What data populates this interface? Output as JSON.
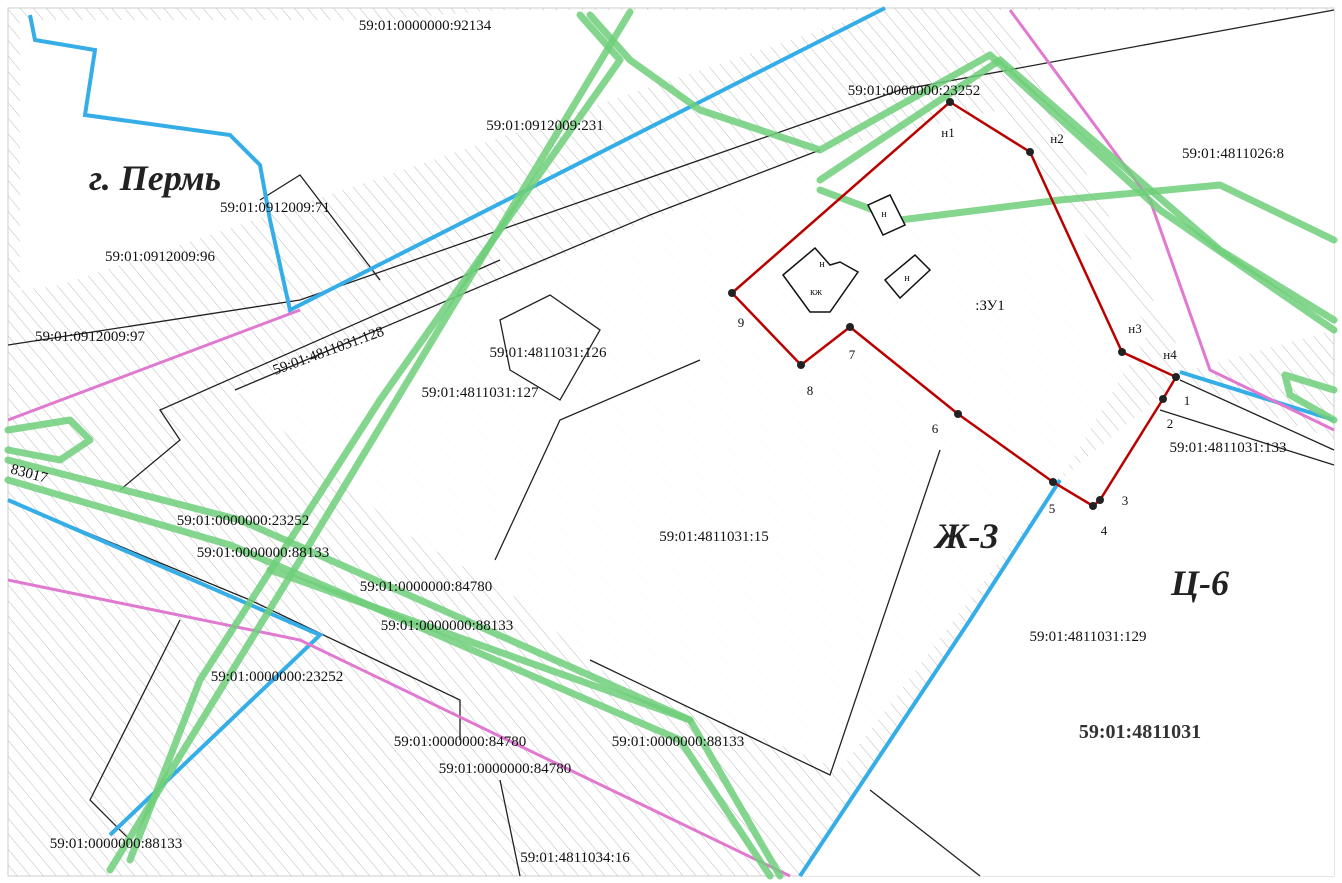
{
  "labels": [
    "59:01:0000000:92134",
    "59:01:0000000:23252",
    "59:01:0912009:231",
    "59:01:4811026:8",
    "г. Пермь",
    "59:01:0912009:71",
    "59:01:0912009:96",
    "59:01:0912009:97",
    "59:01:4811031:128",
    "59:01:4811031:126",
    "59:01:4811031:127",
    ":ЗУ1",
    "59:01:4811031:133",
    "83017",
    "59:01:0000000:23252",
    "59:01:0000000:88133",
    "59:01:4811031:15",
    "Ж-3",
    "Ц-6",
    "59:01:0000000:84780",
    "59:01:0000000:88133",
    "59:01:4811031:129",
    "59:01:0000000:23252",
    "59:01:4811031",
    "59:01:0000000:84780",
    "59:01:0000000:88133",
    "59:01:0000000:84780",
    "59:01:0000000:88133",
    "59:01:4811034:16"
  ],
  "points": [
    "н1",
    "н2",
    "н3",
    "н4",
    "1",
    "2",
    "3",
    "4",
    "5",
    "6",
    "7",
    "8",
    "9"
  ],
  "buildings": [
    "н",
    "н",
    "кж",
    "н"
  ]
}
